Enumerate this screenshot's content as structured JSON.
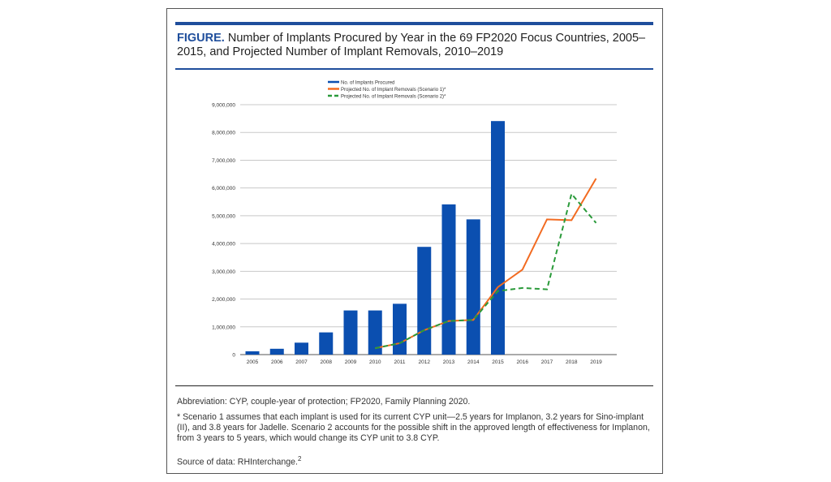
{
  "figure": {
    "label": "FIGURE.",
    "title": "Number of Implants Procured by Year in the 69 FP2020 Focus Countries, 2005–2015, and Projected Number of Implant Removals, 2010–2019"
  },
  "chart_data": {
    "type": "bar",
    "categories": [
      "2005",
      "2006",
      "2007",
      "2008",
      "2009",
      "2010",
      "2011",
      "2012",
      "2013",
      "2014",
      "2015",
      "2016",
      "2017",
      "2018",
      "2019"
    ],
    "ylim": [
      0,
      9000000
    ],
    "yticks": [
      0,
      1000000,
      2000000,
      3000000,
      4000000,
      5000000,
      6000000,
      7000000,
      8000000,
      9000000
    ],
    "ytick_labels": [
      "0",
      "1,000,000",
      "2,000,000",
      "3,000,000",
      "4,000,000",
      "5,000,000",
      "6,000,000",
      "7,000,000",
      "8,000,000",
      "9,000,000"
    ],
    "grid": true,
    "legend_position": "top-center",
    "series": [
      {
        "name": "No. of Implants Procured",
        "kind": "bar",
        "color": "#0b4fb0",
        "values": [
          120000,
          210000,
          430000,
          800000,
          1590000,
          1590000,
          1830000,
          3880000,
          5410000,
          4870000,
          8410000,
          null,
          null,
          null,
          null
        ]
      },
      {
        "name": "Projected No. of Implant Removals (Scenario 1)*",
        "kind": "line",
        "style": "solid",
        "color": "#f26b21",
        "values": [
          null,
          null,
          null,
          null,
          null,
          230000,
          410000,
          880000,
          1210000,
          1250000,
          2430000,
          3060000,
          4870000,
          4840000,
          6340000
        ]
      },
      {
        "name": "Projected No. of Implant Removals (Scenario 2)*",
        "kind": "line",
        "style": "dashed",
        "color": "#2a9a3a",
        "values": [
          null,
          null,
          null,
          null,
          null,
          230000,
          410000,
          880000,
          1210000,
          1250000,
          2290000,
          2400000,
          2350000,
          5790000,
          4740000
        ]
      }
    ]
  },
  "notes": {
    "abbreviation": "Abbreviation: CYP, couple-year of protection; FP2020, Family Planning 2020.",
    "footnote": "* Scenario 1 assumes that each implant is used for its current CYP unit—2.5 years for Implanon, 3.2 years for Sino-implant (II), and 3.8 years for Jadelle. Scenario 2 accounts for the possible shift in the approved length of effectiveness for Implanon, from 3 years to 5 years, which would change its CYP unit to 3.8 CYP.",
    "source": "Source of data: RHInterchange.",
    "source_ref": "2"
  }
}
